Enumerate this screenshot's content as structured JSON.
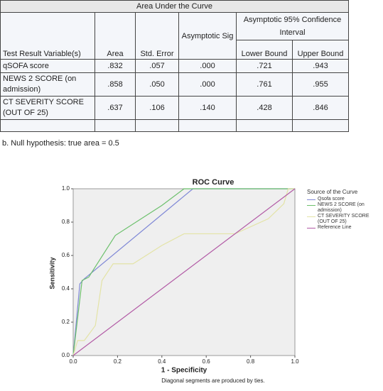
{
  "table": {
    "title": "Area Under the Curve",
    "group_header": "Asymptotic 95% Confidence Interval",
    "columns": [
      "Test Result Variable(s)",
      "Area",
      "Std. Error",
      "Asymptotic Sig",
      "Lower Bound",
      "Upper Bound"
    ],
    "rows": [
      [
        "qSOFA score",
        ".832",
        ".057",
        ".000",
        ".721",
        ".943"
      ],
      [
        "NEWS 2 SCORE (on admission)",
        ".858",
        ".050",
        ".000",
        ".761",
        ".955"
      ],
      [
        "CT SEVERITY SCORE (OUT OF 25)",
        ".637",
        ".106",
        ".140",
        ".428",
        ".846"
      ]
    ],
    "footnote": "b. Null hypothesis: true area = 0.5"
  },
  "chart_data": {
    "type": "line",
    "title": "ROC Curve",
    "x_label": "1 - Specificity",
    "y_label": "Sensitivity",
    "legend_title": "Source of the Curve",
    "note": "Diagonal segments are produced by ties.",
    "xlim": [
      0,
      1
    ],
    "ylim": [
      0,
      1
    ],
    "xticks": [
      {
        "value": 0,
        "label": "0.0"
      },
      {
        "value": 0.2,
        "label": "0.2"
      },
      {
        "value": 0.4,
        "label": "0.4"
      },
      {
        "value": 0.6,
        "label": "0.6"
      },
      {
        "value": 0.8,
        "label": "0.8"
      },
      {
        "value": 1,
        "label": "1.0"
      }
    ],
    "yticks": [
      {
        "value": 0,
        "label": "0.0"
      },
      {
        "value": 0.2,
        "label": "0.2"
      },
      {
        "value": 0.4,
        "label": "0.4"
      },
      {
        "value": 0.6,
        "label": "0.6"
      },
      {
        "value": 0.8,
        "label": "0.8"
      },
      {
        "value": 1,
        "label": "1.0"
      }
    ],
    "series": [
      {
        "name": "Qsofa score",
        "color": "#7f88d6",
        "x": [
          0,
          0.03,
          0.05,
          0.54,
          1
        ],
        "values": [
          0,
          0.43,
          0.46,
          1,
          1
        ]
      },
      {
        "name": "NEWS 2 SCORE (on admission)",
        "color": "#6cc06c",
        "x": [
          0,
          0.04,
          0.07,
          0.19,
          0.4,
          0.5,
          1
        ],
        "values": [
          0,
          0.45,
          0.47,
          0.72,
          0.9,
          1,
          1
        ]
      },
      {
        "name": "CT SEVERITY SCORE (OUT OF 25)",
        "color": "#e3e3a6",
        "x": [
          0,
          0.02,
          0.05,
          0.1,
          0.13,
          0.18,
          0.27,
          0.4,
          0.5,
          0.73,
          0.88,
          0.95,
          0.97,
          1
        ],
        "values": [
          0,
          0.09,
          0.09,
          0.18,
          0.45,
          0.55,
          0.55,
          0.66,
          0.73,
          0.73,
          0.82,
          0.91,
          1,
          1
        ]
      },
      {
        "name": "Reference Line",
        "color": "#b25aa5",
        "x": [
          0,
          1
        ],
        "values": [
          0,
          1
        ]
      }
    ]
  }
}
